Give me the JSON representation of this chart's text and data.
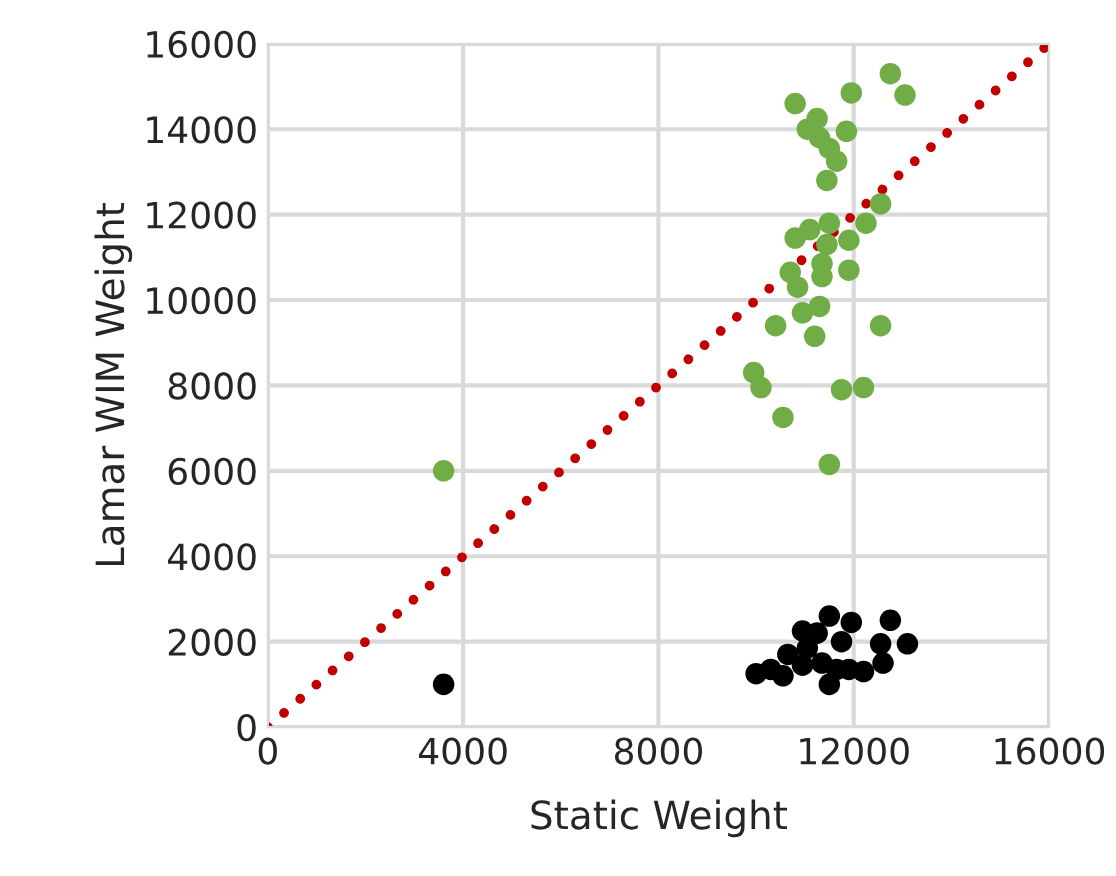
{
  "chart_data": {
    "type": "scatter",
    "xlabel": "Static Weight",
    "ylabel": "Lamar WIM Weight",
    "xlim": [
      0,
      16000
    ],
    "ylim": [
      0,
      16000
    ],
    "xticks": [
      0,
      4000,
      8000,
      12000,
      16000
    ],
    "yticks": [
      0,
      2000,
      4000,
      6000,
      8000,
      10000,
      12000,
      14000,
      16000
    ],
    "grid": true,
    "legend": false,
    "marker": "circle",
    "series": [
      {
        "color": "#70ad47",
        "x": [
          3600,
          12750,
          13050,
          11950,
          10800,
          11250,
          11050,
          11850,
          11300,
          11500,
          11650,
          11450,
          12550,
          12250,
          11500,
          11100,
          10800,
          11900,
          11450,
          11350,
          10700,
          11900,
          11350,
          10850,
          11300,
          10950,
          10400,
          12550,
          11200,
          9950,
          10100,
          11750,
          12200,
          10550,
          11500
        ],
        "values": [
          6000,
          15300,
          14800,
          14850,
          14600,
          14250,
          14000,
          13950,
          13800,
          13550,
          13250,
          12800,
          12250,
          11800,
          11800,
          11650,
          11450,
          11400,
          11300,
          10850,
          10650,
          10700,
          10550,
          10300,
          9850,
          9700,
          9400,
          9400,
          9150,
          8300,
          7950,
          7900,
          7950,
          7250,
          6150
        ]
      },
      {
        "color": "#000000",
        "x": [
          3600,
          10000,
          10550,
          10950,
          11500,
          11950,
          12750,
          13100,
          12550,
          12600,
          12200,
          11500,
          10650,
          11050,
          11350,
          11650,
          11750,
          10950,
          10300,
          11900,
          11250
        ],
        "values": [
          1000,
          1250,
          1200,
          2250,
          2600,
          2450,
          2500,
          1950,
          1950,
          1500,
          1300,
          1000,
          1700,
          1850,
          1500,
          1350,
          2000,
          1450,
          1350,
          1350,
          2200
        ]
      },
      {
        "type": "line",
        "color": "#c00000",
        "line_style": "dotted",
        "marker": "none",
        "x": [
          0,
          16000
        ],
        "values": [
          0,
          16000
        ]
      }
    ]
  }
}
